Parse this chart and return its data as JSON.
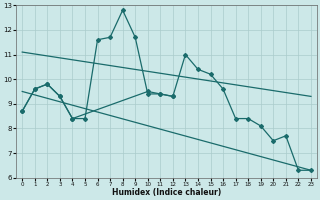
{
  "xlabel": "Humidex (Indice chaleur)",
  "bg_color": "#cce8e8",
  "grid_color": "#aacccc",
  "line_color": "#1a6b6b",
  "xlim": [
    -0.5,
    23.5
  ],
  "ylim": [
    6,
    13
  ],
  "xticks": [
    0,
    1,
    2,
    3,
    4,
    5,
    6,
    7,
    8,
    9,
    10,
    11,
    12,
    13,
    14,
    15,
    16,
    17,
    18,
    19,
    20,
    21,
    22,
    23
  ],
  "yticks": [
    6,
    7,
    8,
    9,
    10,
    11,
    12,
    13
  ],
  "series_jagged": [
    8.7,
    9.6,
    9.8,
    9.3,
    8.4,
    8.4,
    11.6,
    11.7,
    12.8,
    11.7,
    9.4,
    9.4,
    9.3,
    11.0,
    10.4,
    10.2,
    9.6,
    8.4,
    8.4,
    8.1,
    7.5,
    7.7,
    6.3,
    6.3
  ],
  "series_flat": [
    8.7,
    9.6,
    9.8,
    9.3,
    8.4,
    null,
    null,
    null,
    null,
    null,
    9.5,
    9.4,
    9.3,
    null,
    null,
    null,
    null,
    null,
    null,
    null,
    null,
    null,
    null,
    null
  ],
  "line1_x": [
    0,
    23
  ],
  "line1_y": [
    11.1,
    9.3
  ],
  "line2_x": [
    0,
    23
  ],
  "line2_y": [
    9.5,
    6.3
  ]
}
